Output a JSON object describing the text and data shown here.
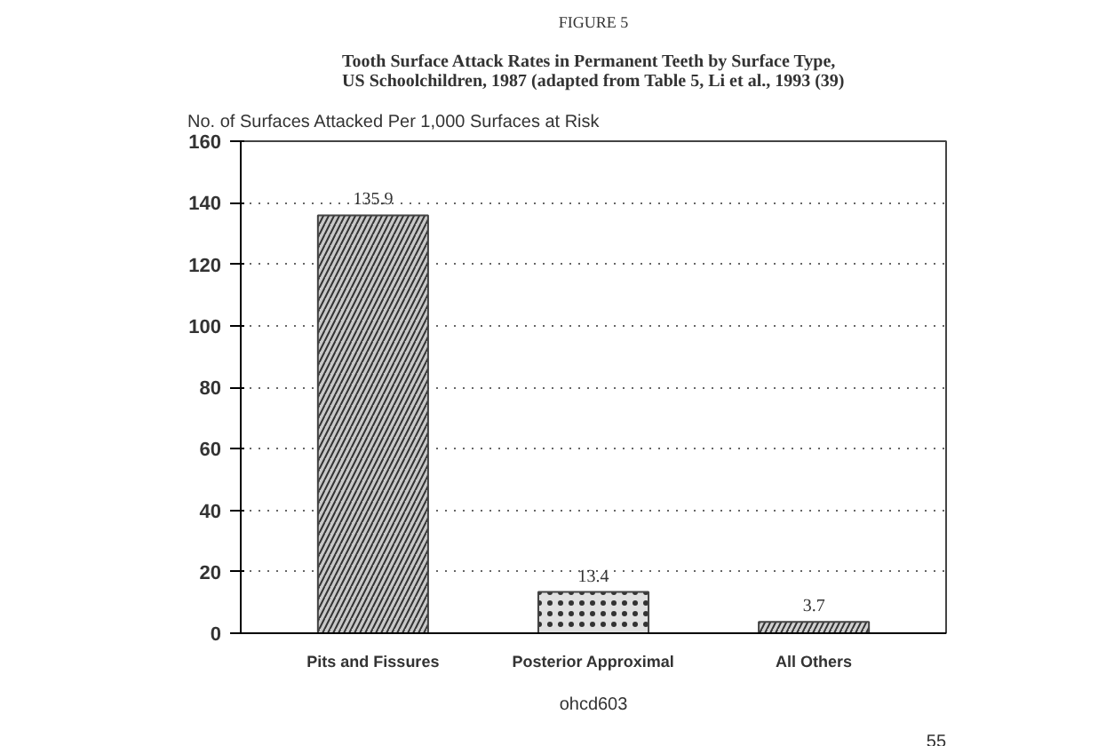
{
  "chart_data": {
    "type": "bar",
    "title": "FIGURE 5",
    "subtitle": "Tooth Surface Attack Rates in Permanent Teeth by Surface Type,\nUS Schoolchildren, 1987 (adapted from Table 5, Li et al., 1993 (39)",
    "ylabel": "No. of Surfaces Attacked Per 1,000 Surfaces at Risk",
    "categories": [
      "Pits and Fissures",
      "Posterior Approximal",
      "All Others"
    ],
    "values": [
      135.9,
      13.4,
      3.7
    ],
    "colors": [
      "#c8c8c8",
      "#e0e0e0",
      "#d0d0d0"
    ],
    "data_labels": true,
    "ylim": [
      0,
      160
    ],
    "yticks": [
      0,
      20,
      40,
      60,
      80,
      100,
      120,
      140,
      160
    ],
    "grid": "y",
    "annotations": [
      "ohcd603",
      "55"
    ]
  }
}
